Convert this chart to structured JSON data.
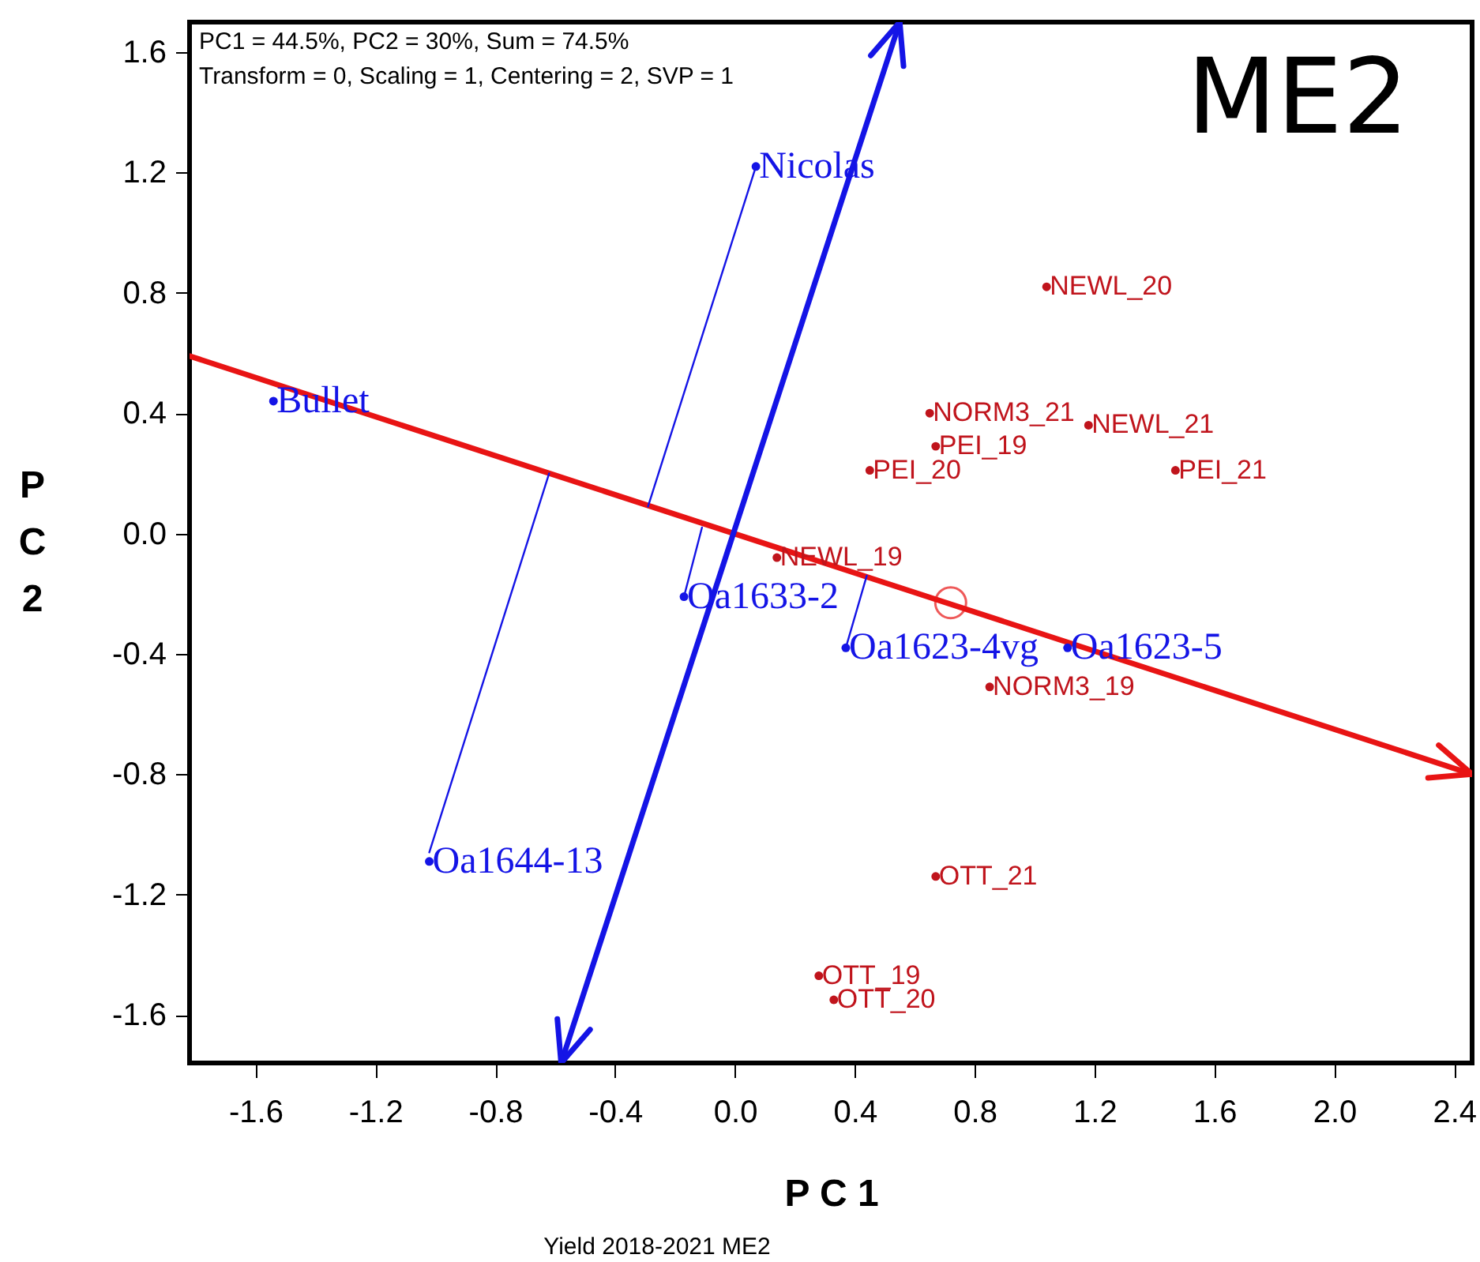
{
  "chart_data": {
    "type": "scatter",
    "title": "ME2",
    "xlabel": "P C 1",
    "ylabel": "P C 2",
    "annotations": [
      "PC1 = 44.5%, PC2 = 30%, Sum = 74.5%",
      "Transform = 0, Scaling = 1, Centering = 2, SVP = 1",
      "Yield 2018-2021 ME2"
    ],
    "xlim": [
      -1.82,
      2.46
    ],
    "ylim": [
      -1.76,
      1.7
    ],
    "xticks": [
      -1.6,
      -1.2,
      -0.8,
      -0.4,
      {
        "value": 0,
        "label": "0.0"
      },
      0.4,
      0.8,
      1.2,
      1.6,
      {
        "value": 2,
        "label": "2.0"
      },
      2.4
    ],
    "yticks": [
      -1.6,
      -1.2,
      -0.8,
      -0.4,
      {
        "value": 0,
        "label": "0.0"
      },
      0.4,
      0.8,
      1.2,
      1.6
    ],
    "grid": false,
    "series": [
      {
        "type": "line",
        "color": "#e81414",
        "x": [
          -1.82,
          2.46
        ],
        "values": [
          0.59,
          -0.8
        ]
      },
      {
        "type": "line",
        "color": "#1414e6",
        "x": [
          -0.58,
          0.55
        ],
        "values": [
          -1.76,
          1.7
        ]
      },
      {
        "type": "line",
        "color": "#1414e6",
        "x": [
          0.07,
          -0.29
        ],
        "values": [
          1.22,
          0.09
        ]
      },
      {
        "type": "line",
        "color": "#1414e6",
        "x": [
          -1.02,
          -0.62
        ],
        "values": [
          -1.06,
          0.2
        ]
      },
      {
        "type": "line",
        "color": "#1414e6",
        "x": [
          -0.17,
          -0.11
        ],
        "values": [
          -0.21,
          0.02
        ]
      },
      {
        "type": "line",
        "color": "#1414e6",
        "x": [
          0.37,
          0.44
        ],
        "values": [
          -0.38,
          -0.14
        ]
      },
      {
        "name": "NEWL_20",
        "color": "#c0141c",
        "x": [
          1.04
        ],
        "values": [
          0.82
        ]
      },
      {
        "name": "NORM3_21",
        "color": "#c0141c",
        "x": [
          0.65
        ],
        "values": [
          0.4
        ]
      },
      {
        "name": "NEWL_21",
        "color": "#c0141c",
        "x": [
          1.18
        ],
        "values": [
          0.36
        ]
      },
      {
        "name": "PEI_19",
        "color": "#c0141c",
        "x": [
          0.67
        ],
        "values": [
          0.29
        ]
      },
      {
        "name": "PEI_20",
        "color": "#c0141c",
        "x": [
          0.45
        ],
        "values": [
          0.21
        ]
      },
      {
        "name": "PEI_21",
        "color": "#c0141c",
        "x": [
          1.47
        ],
        "values": [
          0.21
        ]
      },
      {
        "name": "NEWL_19",
        "color": "#c0141c",
        "x": [
          0.14
        ],
        "values": [
          -0.08
        ]
      },
      {
        "name": "NORM3_19",
        "color": "#c0141c",
        "x": [
          0.85
        ],
        "values": [
          -0.51
        ]
      },
      {
        "name": "OTT_21",
        "color": "#c0141c",
        "x": [
          0.67
        ],
        "values": [
          -1.14
        ]
      },
      {
        "name": "OTT_19",
        "color": "#c0141c",
        "x": [
          0.28
        ],
        "values": [
          -1.47
        ]
      },
      {
        "name": "OTT_20",
        "color": "#c0141c",
        "x": [
          0.33
        ],
        "values": [
          -1.55
        ]
      },
      {
        "name": "Nicolas",
        "color": "#1414e6",
        "x": [
          0.07
        ],
        "values": [
          1.22
        ]
      },
      {
        "name": "Bullet",
        "color": "#1414e6",
        "x": [
          -1.54
        ],
        "values": [
          0.44
        ]
      },
      {
        "name": "Oa1633-2",
        "color": "#1414e6",
        "x": [
          -0.17
        ],
        "values": [
          -0.21
        ]
      },
      {
        "name": "Oa1623-4vg",
        "color": "#1414e6",
        "x": [
          0.37
        ],
        "values": [
          -0.38
        ]
      },
      {
        "name": "Oa1623-5",
        "color": "#1414e6",
        "x": [
          1.11
        ],
        "values": [
          -0.38
        ]
      },
      {
        "name": "Oa1644-13",
        "color": "#1414e6",
        "x": [
          -1.02
        ],
        "values": [
          -1.09
        ]
      },
      {
        "color": "#e81414",
        "marker": "circle",
        "x": [
          0.72
        ],
        "values": [
          -0.23
        ]
      }
    ]
  }
}
